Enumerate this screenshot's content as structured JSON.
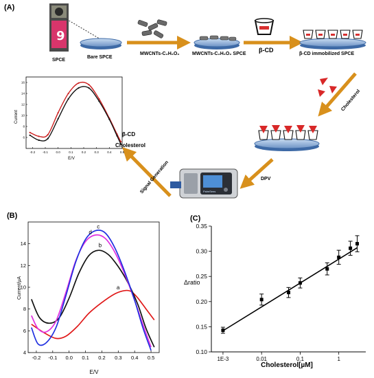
{
  "panels": {
    "a": "(A)",
    "b": "(B)",
    "c": "(C)"
  },
  "schematic": {
    "spce": "SPCE",
    "bare_spce": "Bare SPCE",
    "mwcnts": "MWCNTs-C₂H₆O₂",
    "mwcnts_spce": "MWCNTs-C₂H₆O₂ SPCE",
    "bcd": "β-CD",
    "bcd_spce": "β-CD immobilized SPCE",
    "cholesterol_arrow": "Cholesterol",
    "dpv": "DPV",
    "signal": "Signal Generation",
    "device_brand": "PalmSens"
  },
  "inset_plot": {
    "ylabel": "Current",
    "xlabel": "E/V",
    "xticks": [
      "-0.2",
      "-0.1",
      "0.0",
      "0.1",
      "0.2",
      "0.3",
      "0.4",
      "0.5"
    ],
    "yticks": [
      "6",
      "8",
      "10",
      "12",
      "14",
      "16"
    ],
    "legend_bcd": "β-CD",
    "legend_chol": "Cholesterol",
    "colors": {
      "bcd": "#cc2020",
      "cholesterol": "#111111"
    }
  },
  "chart_data": [
    {
      "type": "line",
      "panel": "(B)",
      "xlabel": "E/V",
      "ylabel": "Current/µA",
      "xlim": [
        -0.25,
        0.55
      ],
      "ylim": [
        4,
        16
      ],
      "xticks": [
        "-0.2",
        "-0.1",
        "0.0",
        "0.1",
        "0.2",
        "0.3",
        "0.4",
        "0.5"
      ],
      "yticks": [
        "4",
        "6",
        "8",
        "10",
        "12",
        "14"
      ],
      "series": [
        {
          "name": "a",
          "color": "#e01818",
          "x": [
            -0.23,
            -0.15,
            -0.08,
            -0.02,
            0.05,
            0.12,
            0.2,
            0.28,
            0.34,
            0.38,
            0.42,
            0.47,
            0.52
          ],
          "y": [
            6.6,
            5.8,
            5.3,
            5.5,
            6.4,
            7.6,
            8.6,
            9.4,
            9.7,
            9.6,
            9.0,
            8.0,
            7.0
          ]
        },
        {
          "name": "b",
          "color": "#111111",
          "x": [
            -0.23,
            -0.18,
            -0.12,
            -0.06,
            0.0,
            0.06,
            0.12,
            0.18,
            0.24,
            0.3,
            0.36,
            0.42,
            0.47,
            0.52
          ],
          "y": [
            8.9,
            7.2,
            6.7,
            7.2,
            9.0,
            11.3,
            12.9,
            13.4,
            13.0,
            11.9,
            10.4,
            8.4,
            6.2,
            4.5
          ]
        },
        {
          "name": "d",
          "color": "#e030e0",
          "x": [
            -0.23,
            -0.19,
            -0.14,
            -0.08,
            -0.02,
            0.04,
            0.1,
            0.16,
            0.22,
            0.28,
            0.34,
            0.4,
            0.45,
            0.5
          ],
          "y": [
            7.4,
            6.2,
            5.9,
            6.9,
            9.5,
            12.4,
            14.2,
            14.8,
            14.5,
            13.2,
            11.2,
            8.8,
            6.6,
            4.5
          ]
        },
        {
          "name": "c",
          "color": "#2030e0",
          "x": [
            -0.23,
            -0.19,
            -0.14,
            -0.08,
            -0.02,
            0.04,
            0.1,
            0.16,
            0.22,
            0.28,
            0.34,
            0.4,
            0.45,
            0.5
          ],
          "y": [
            6.3,
            4.8,
            4.9,
            6.3,
            9.2,
            12.3,
            14.4,
            15.2,
            15.0,
            13.6,
            11.4,
            8.8,
            6.3,
            4.2
          ]
        }
      ],
      "labels": [
        {
          "text": "a",
          "x": 0.29,
          "y": 9.8
        },
        {
          "text": "b",
          "x": 0.18,
          "y": 13.7
        },
        {
          "text": "c",
          "x": 0.17,
          "y": 15.4
        },
        {
          "text": "d",
          "x": 0.12,
          "y": 14.9
        }
      ]
    },
    {
      "type": "scatter",
      "panel": "(C)",
      "xlabel": "Cholesterol[µM]",
      "ylabel": "Δratio",
      "xscale": "log",
      "xlim": [
        0.0005,
        5
      ],
      "ylim": [
        0.1,
        0.35
      ],
      "xticks": [
        "1E-3",
        "0.01",
        "0.1",
        "1"
      ],
      "yticks": [
        "0.10",
        "0.15",
        "0.20",
        "0.25",
        "0.30",
        "0.35"
      ],
      "points": [
        {
          "x": 0.001,
          "y": 0.143,
          "err": 0.006
        },
        {
          "x": 0.01,
          "y": 0.204,
          "err": 0.011
        },
        {
          "x": 0.05,
          "y": 0.218,
          "err": 0.01
        },
        {
          "x": 0.1,
          "y": 0.237,
          "err": 0.01
        },
        {
          "x": 0.5,
          "y": 0.265,
          "err": 0.012
        },
        {
          "x": 1,
          "y": 0.288,
          "err": 0.014
        },
        {
          "x": 2,
          "y": 0.306,
          "err": 0.014
        },
        {
          "x": 3,
          "y": 0.315,
          "err": 0.016
        }
      ],
      "fit": {
        "x": [
          0.001,
          3
        ],
        "y": [
          0.142,
          0.307
        ]
      }
    }
  ]
}
